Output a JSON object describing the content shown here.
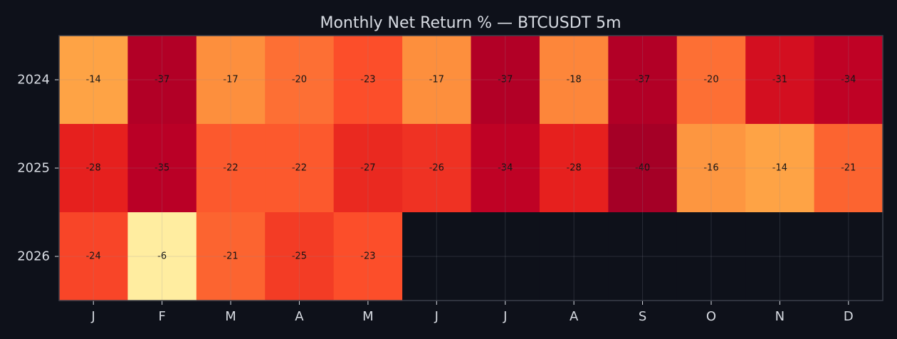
{
  "chart_data": {
    "type": "heatmap",
    "title": "Monthly Net Return % — BTCUSDT 5m",
    "xlabel": "",
    "ylabel": "",
    "x_categories": [
      "J",
      "F",
      "M",
      "A",
      "M",
      "J",
      "J",
      "A",
      "S",
      "O",
      "N",
      "D"
    ],
    "y_categories": [
      "2024",
      "2025",
      "2026"
    ],
    "values": [
      [
        -14,
        -37,
        -17,
        -20,
        -23,
        -17,
        -37,
        -18,
        -37,
        -20,
        -31,
        -34
      ],
      [
        -28,
        -35,
        -22,
        -22,
        -27,
        -26,
        -34,
        -28,
        -40,
        -16,
        -14,
        -21
      ],
      [
        -24,
        -6,
        -21,
        -25,
        -23,
        null,
        null,
        null,
        null,
        null,
        null,
        null
      ]
    ],
    "color_range": [
      -40,
      -6
    ],
    "colormap": [
      "#ffeda0",
      "#feb24c",
      "#fd8d3c",
      "#fc4e2a",
      "#e31a1c",
      "#bd0026",
      "#a50026"
    ],
    "grid": true,
    "legend": "none"
  },
  "colors": {
    "background": "#0e111a",
    "empty_cell": "#0e111a",
    "grid_line": "#8a8f99",
    "frame": "#3a3f4a",
    "text": "#d8dce3",
    "cell_text": "#111111"
  }
}
